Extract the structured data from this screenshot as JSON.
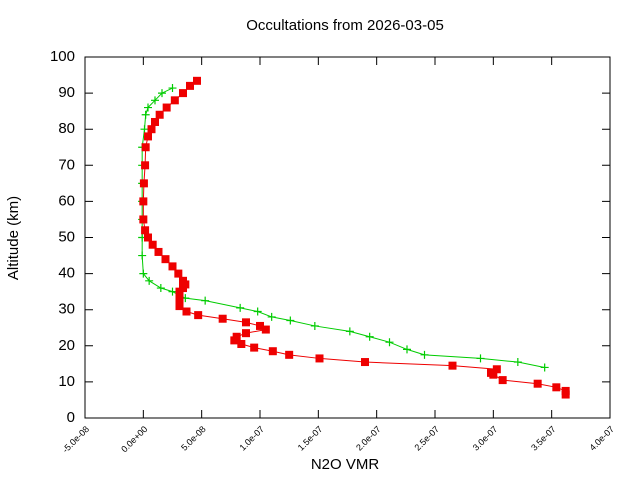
{
  "chart_data": {
    "type": "scatter",
    "title": "Occultations from 2026-03-05",
    "x_label": "N2O VMR",
    "y_label": "Altitude (km)",
    "xlim": [
      -5e-08,
      4e-07
    ],
    "ylim": [
      0,
      100
    ],
    "xticks": [
      {
        "value": -5e-08,
        "label": "-5.0e-08"
      },
      {
        "value": 0,
        "label": "0.0e+00"
      },
      {
        "value": 5e-08,
        "label": "5.0e-08"
      },
      {
        "value": 1e-07,
        "label": "1.0e-07"
      },
      {
        "value": 1.5e-07,
        "label": "1.5e-07"
      },
      {
        "value": 2e-07,
        "label": "2.0e-07"
      },
      {
        "value": 2.5e-07,
        "label": "2.5e-07"
      },
      {
        "value": 3e-07,
        "label": "3.0e-07"
      },
      {
        "value": 3.5e-07,
        "label": "3.5e-07"
      },
      {
        "value": 4e-07,
        "label": "4.0e-07"
      }
    ],
    "yticks": [
      0,
      10,
      20,
      30,
      40,
      50,
      60,
      70,
      80,
      90,
      100
    ],
    "series": [
      {
        "color": "#00cc00",
        "marker": "plus",
        "x": [
          2.5e-08,
          1.6e-08,
          1e-08,
          4e-09,
          2e-09,
          1e-09,
          -1e-09,
          -1e-09,
          -1e-09,
          -1e-09,
          -1e-09,
          -1e-09,
          -1e-09,
          0,
          5e-09,
          1.5e-08,
          2.5e-08,
          3.6e-08,
          5.3e-08,
          8.3e-08,
          9.8e-08,
          1.1e-07,
          1.26e-07,
          1.47e-07,
          1.77e-07,
          1.94e-07,
          2.11e-07,
          2.26e-07,
          2.41e-07,
          2.89e-07,
          3.21e-07,
          3.44e-07
        ],
        "values": [
          91.4,
          90,
          88,
          86,
          84,
          80,
          75,
          70,
          65,
          60,
          55,
          50,
          45,
          40,
          38,
          36,
          35,
          33.2,
          32.5,
          30.5,
          29.5,
          28,
          27,
          25.5,
          24,
          22.5,
          21,
          19,
          17.5,
          16.5,
          15.5,
          14
        ]
      },
      {
        "color": "#ee0000",
        "marker": "square",
        "x": [
          4.6e-08,
          4e-08,
          3.4e-08,
          2.7e-08,
          2e-08,
          1.4e-08,
          1e-08,
          7e-09,
          4e-09,
          2e-09,
          1.5e-09,
          5e-10,
          0,
          0,
          1.5e-09,
          4e-09,
          8e-09,
          1.3e-08,
          1.9e-08,
          2.5e-08,
          3e-08,
          3.4e-08,
          3.6e-08,
          3.4e-08,
          3.1e-08,
          3.1e-08,
          3.1e-08,
          3.7e-08,
          4.7e-08,
          6.8e-08,
          8.8e-08,
          1e-07,
          1.05e-07,
          8.8e-08,
          8e-08,
          7.8e-08,
          8.4e-08,
          9.5e-08,
          1.11e-07,
          1.25e-07,
          1.51e-07,
          1.9e-07,
          2.65e-07,
          3.03e-07,
          2.98e-07,
          3e-07,
          3.08e-07,
          3.38e-07,
          3.54e-07,
          3.62e-07,
          3.62e-07
        ],
        "values": [
          93.4,
          92,
          90,
          88,
          86,
          84,
          82,
          80,
          78,
          75,
          70,
          65,
          60,
          55,
          52,
          50,
          48,
          46,
          44,
          42,
          40,
          38,
          37,
          36,
          35,
          33,
          31,
          29.5,
          28.5,
          27.5,
          26.5,
          25.5,
          24.5,
          23.5,
          22.5,
          21.5,
          20.5,
          19.5,
          18.5,
          17.5,
          16.5,
          15.5,
          14.5,
          13.5,
          12.5,
          12,
          10.5,
          9.5,
          8.5,
          7.5,
          6.5
        ]
      }
    ]
  }
}
